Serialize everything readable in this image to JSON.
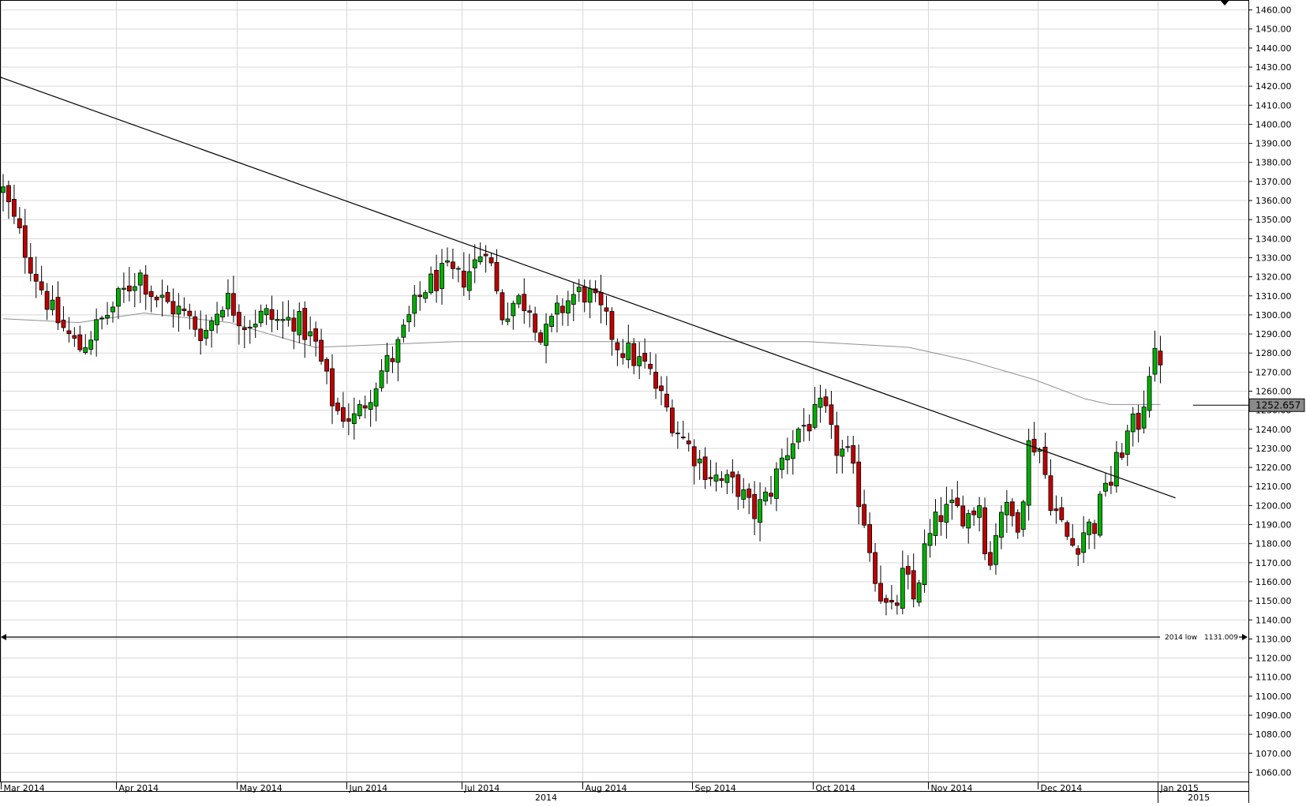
{
  "chart_data": {
    "type": "candlestick",
    "title": "",
    "xlabel": "",
    "ylabel": "",
    "ylim": [
      1055,
      1465
    ],
    "y_ticks": [
      "1460.00",
      "1450.00",
      "1440.00",
      "1430.00",
      "1420.00",
      "1410.00",
      "1400.00",
      "1390.00",
      "1380.00",
      "1370.00",
      "1360.00",
      "1350.00",
      "1340.00",
      "1330.00",
      "1320.00",
      "1310.00",
      "1300.00",
      "1290.00",
      "1280.00",
      "1270.00",
      "1260.00",
      "1250.00",
      "1240.00",
      "1230.00",
      "1220.00",
      "1210.00",
      "1200.00",
      "1190.00",
      "1180.00",
      "1170.00",
      "1160.00",
      "1150.00",
      "1140.00",
      "1130.00",
      "1120.00",
      "1110.00",
      "1100.00",
      "1090.00",
      "1080.00",
      "1070.00",
      "1060.00"
    ],
    "months": [
      {
        "label": "Mar 2014",
        "index": 0
      },
      {
        "label": "Apr 2014",
        "index": 21
      },
      {
        "label": "May 2014",
        "index": 43
      },
      {
        "label": "Jun 2014",
        "index": 63
      },
      {
        "label": "Jul 2014",
        "index": 84
      },
      {
        "label": "Aug 2014",
        "index": 106
      },
      {
        "label": "Sep 2014",
        "index": 126
      },
      {
        "label": "Oct 2014",
        "index": 148
      },
      {
        "label": "Nov 2014",
        "index": 169
      },
      {
        "label": "Dec 2014",
        "index": 189
      },
      {
        "label": "Jan 2015",
        "index": 211
      }
    ],
    "year_labels": [
      {
        "label": "2014",
        "index": 99
      },
      {
        "label": "2015",
        "index": 218
      }
    ],
    "total_bars": 220,
    "anchors": [
      [
        0,
        1365
      ],
      [
        2,
        1350
      ],
      [
        5,
        1330
      ],
      [
        10,
        1300
      ],
      [
        15,
        1282
      ],
      [
        20,
        1298
      ],
      [
        24,
        1312
      ],
      [
        27,
        1322
      ],
      [
        30,
        1310
      ],
      [
        35,
        1302
      ],
      [
        40,
        1290
      ],
      [
        44,
        1310
      ],
      [
        48,
        1296
      ],
      [
        52,
        1300
      ],
      [
        55,
        1296
      ],
      [
        58,
        1298
      ],
      [
        62,
        1285
      ],
      [
        66,
        1250
      ],
      [
        70,
        1245
      ],
      [
        75,
        1270
      ],
      [
        78,
        1280
      ],
      [
        81,
        1300
      ],
      [
        84,
        1315
      ],
      [
        86,
        1318
      ],
      [
        88,
        1322
      ],
      [
        91,
        1318
      ],
      [
        94,
        1328
      ],
      [
        96,
        1338
      ],
      [
        99,
        1300
      ],
      [
        102,
        1308
      ],
      [
        105,
        1305
      ],
      [
        107,
        1285
      ],
      [
        110,
        1300
      ],
      [
        113,
        1310
      ],
      [
        116,
        1312
      ],
      [
        119,
        1300
      ],
      [
        122,
        1285
      ],
      [
        125,
        1278
      ],
      [
        128,
        1272
      ],
      [
        131,
        1255
      ],
      [
        134,
        1240
      ],
      [
        137,
        1228
      ],
      [
        140,
        1218
      ],
      [
        143,
        1212
      ],
      [
        146,
        1210
      ],
      [
        149,
        1195
      ],
      [
        152,
        1205
      ],
      [
        155,
        1225
      ],
      [
        158,
        1240
      ],
      [
        161,
        1245
      ],
      [
        163,
        1252
      ],
      [
        165,
        1232
      ],
      [
        168,
        1225
      ],
      [
        171,
        1195
      ],
      [
        173,
        1168
      ],
      [
        175,
        1148
      ],
      [
        177,
        1142
      ],
      [
        179,
        1165
      ],
      [
        181,
        1150
      ],
      [
        183,
        1175
      ],
      [
        186,
        1195
      ],
      [
        189,
        1198
      ],
      [
        192,
        1195
      ],
      [
        194,
        1202
      ],
      [
        196,
        1165
      ],
      [
        198,
        1200
      ],
      [
        200,
        1195
      ],
      [
        202,
        1192
      ],
      [
        204,
        1235
      ],
      [
        206,
        1230
      ],
      [
        208,
        1205
      ],
      [
        211,
        1185
      ],
      [
        213,
        1178
      ],
      [
        215,
        1188
      ],
      [
        217,
        1190
      ],
      [
        218,
        1200
      ],
      [
        219,
        1215
      ],
      [
        220,
        1210
      ],
      [
        222,
        1228
      ],
      [
        224,
        1240
      ],
      [
        226,
        1245
      ],
      [
        228,
        1275
      ],
      [
        230,
        1278
      ]
    ],
    "ma_points": [
      [
        0,
        1298
      ],
      [
        15,
        1296
      ],
      [
        28,
        1301
      ],
      [
        45,
        1296
      ],
      [
        62,
        1283
      ],
      [
        90,
        1286
      ],
      [
        115,
        1286
      ],
      [
        140,
        1286
      ],
      [
        148,
        1286
      ],
      [
        160,
        1286
      ],
      [
        180,
        1283
      ],
      [
        192,
        1276
      ],
      [
        205,
        1266
      ],
      [
        215,
        1256
      ],
      [
        220,
        1253
      ],
      [
        230,
        1253
      ]
    ],
    "trendline": {
      "from": [
        -3,
        1427
      ],
      "to": [
        233,
        1204
      ]
    },
    "support_line": {
      "value": 1131.009,
      "label": "2014 low",
      "value_label": "1131.009"
    },
    "current_price": {
      "label": "1252.657",
      "value": 1252.657
    },
    "colors": {
      "up": "#00b000",
      "down": "#c00000",
      "wick": "#000000",
      "grid": "#d8d8d8",
      "ma": "#909090",
      "line": "#000000"
    }
  }
}
